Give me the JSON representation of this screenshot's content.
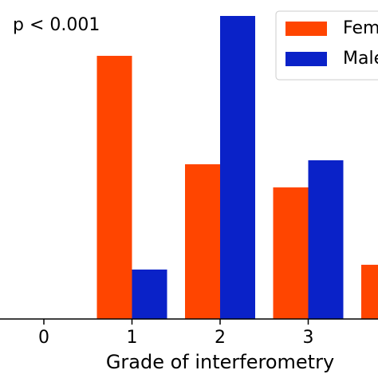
{
  "chart_data": {
    "type": "bar",
    "annotation": "p < 0.001",
    "x_label": "Grade of interferometry",
    "categories": [
      "0",
      "1",
      "2",
      "3",
      null
    ],
    "series": [
      {
        "name": "Female",
        "color": "#ff4500",
        "values": [
          0,
          33,
          19.4,
          16.5,
          6.8
        ]
      },
      {
        "name": "Male",
        "color": "#0a22c8",
        "values": [
          0,
          6.2,
          38,
          19.9,
          null
        ]
      }
    ],
    "ylim": [
      0,
      40
    ]
  }
}
